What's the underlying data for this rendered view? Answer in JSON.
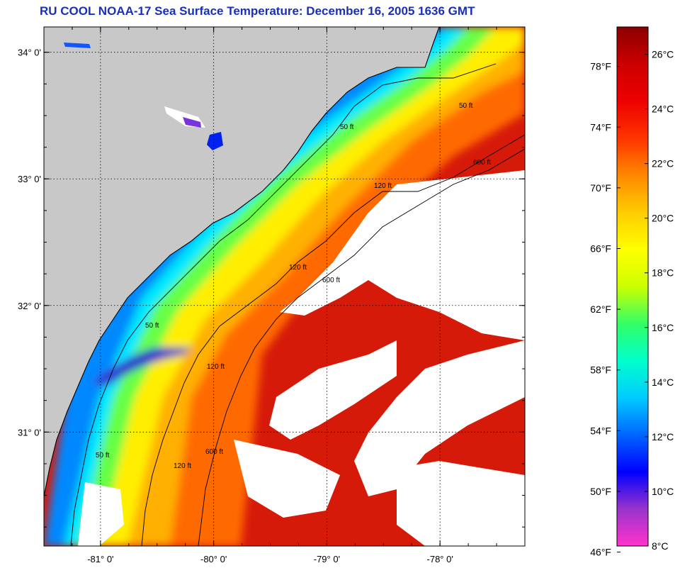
{
  "title": "RU COOL  NOAA-17  Sea Surface Temperature:  December 16, 2005 1636 GMT",
  "map": {
    "lon_range": [
      -81.5,
      -77.25
    ],
    "lat_range": [
      30.1,
      34.2
    ],
    "lon_ticks": [
      {
        "value": -81,
        "label": "-81° 0'"
      },
      {
        "value": -80,
        "label": "-80° 0'"
      },
      {
        "value": -79,
        "label": "-79° 0'"
      },
      {
        "value": -78,
        "label": "-78° 0'"
      }
    ],
    "lat_ticks": [
      {
        "value": 34,
        "label": "34° 0'"
      },
      {
        "value": 33,
        "label": "33° 0'"
      },
      {
        "value": 32,
        "label": "32° 0'"
      },
      {
        "value": 31,
        "label": "31° 0'"
      }
    ],
    "grid": true,
    "land_color": "#c8c8c8",
    "cloud_color": "#ffffff",
    "contour_labels": [
      "50 ft",
      "120 ft",
      "600 ft"
    ]
  },
  "colorbar": {
    "celsius_range": [
      8,
      27
    ],
    "celsius_labels": [
      "26°C",
      "24°C",
      "22°C",
      "20°C",
      "18°C",
      "16°C",
      "14°C",
      "12°C",
      "10°C",
      "8°C"
    ],
    "celsius_values": [
      26,
      24,
      22,
      20,
      18,
      16,
      14,
      12,
      10,
      8
    ],
    "fahrenheit_labels": [
      "78°F",
      "74°F",
      "70°F",
      "66°F",
      "62°F",
      "58°F",
      "54°F",
      "50°F",
      "46°F"
    ],
    "fahrenheit_values": [
      78,
      74,
      70,
      66,
      62,
      58,
      54,
      50,
      46
    ],
    "colors": [
      "#ff33cc",
      "#9933cc",
      "#0000ff",
      "#0066ff",
      "#00ccff",
      "#00ffcc",
      "#33ff66",
      "#ccff00",
      "#ffff00",
      "#ffcc00",
      "#ff8800",
      "#ff3300",
      "#ee0000",
      "#cc0000",
      "#8b0000"
    ]
  }
}
